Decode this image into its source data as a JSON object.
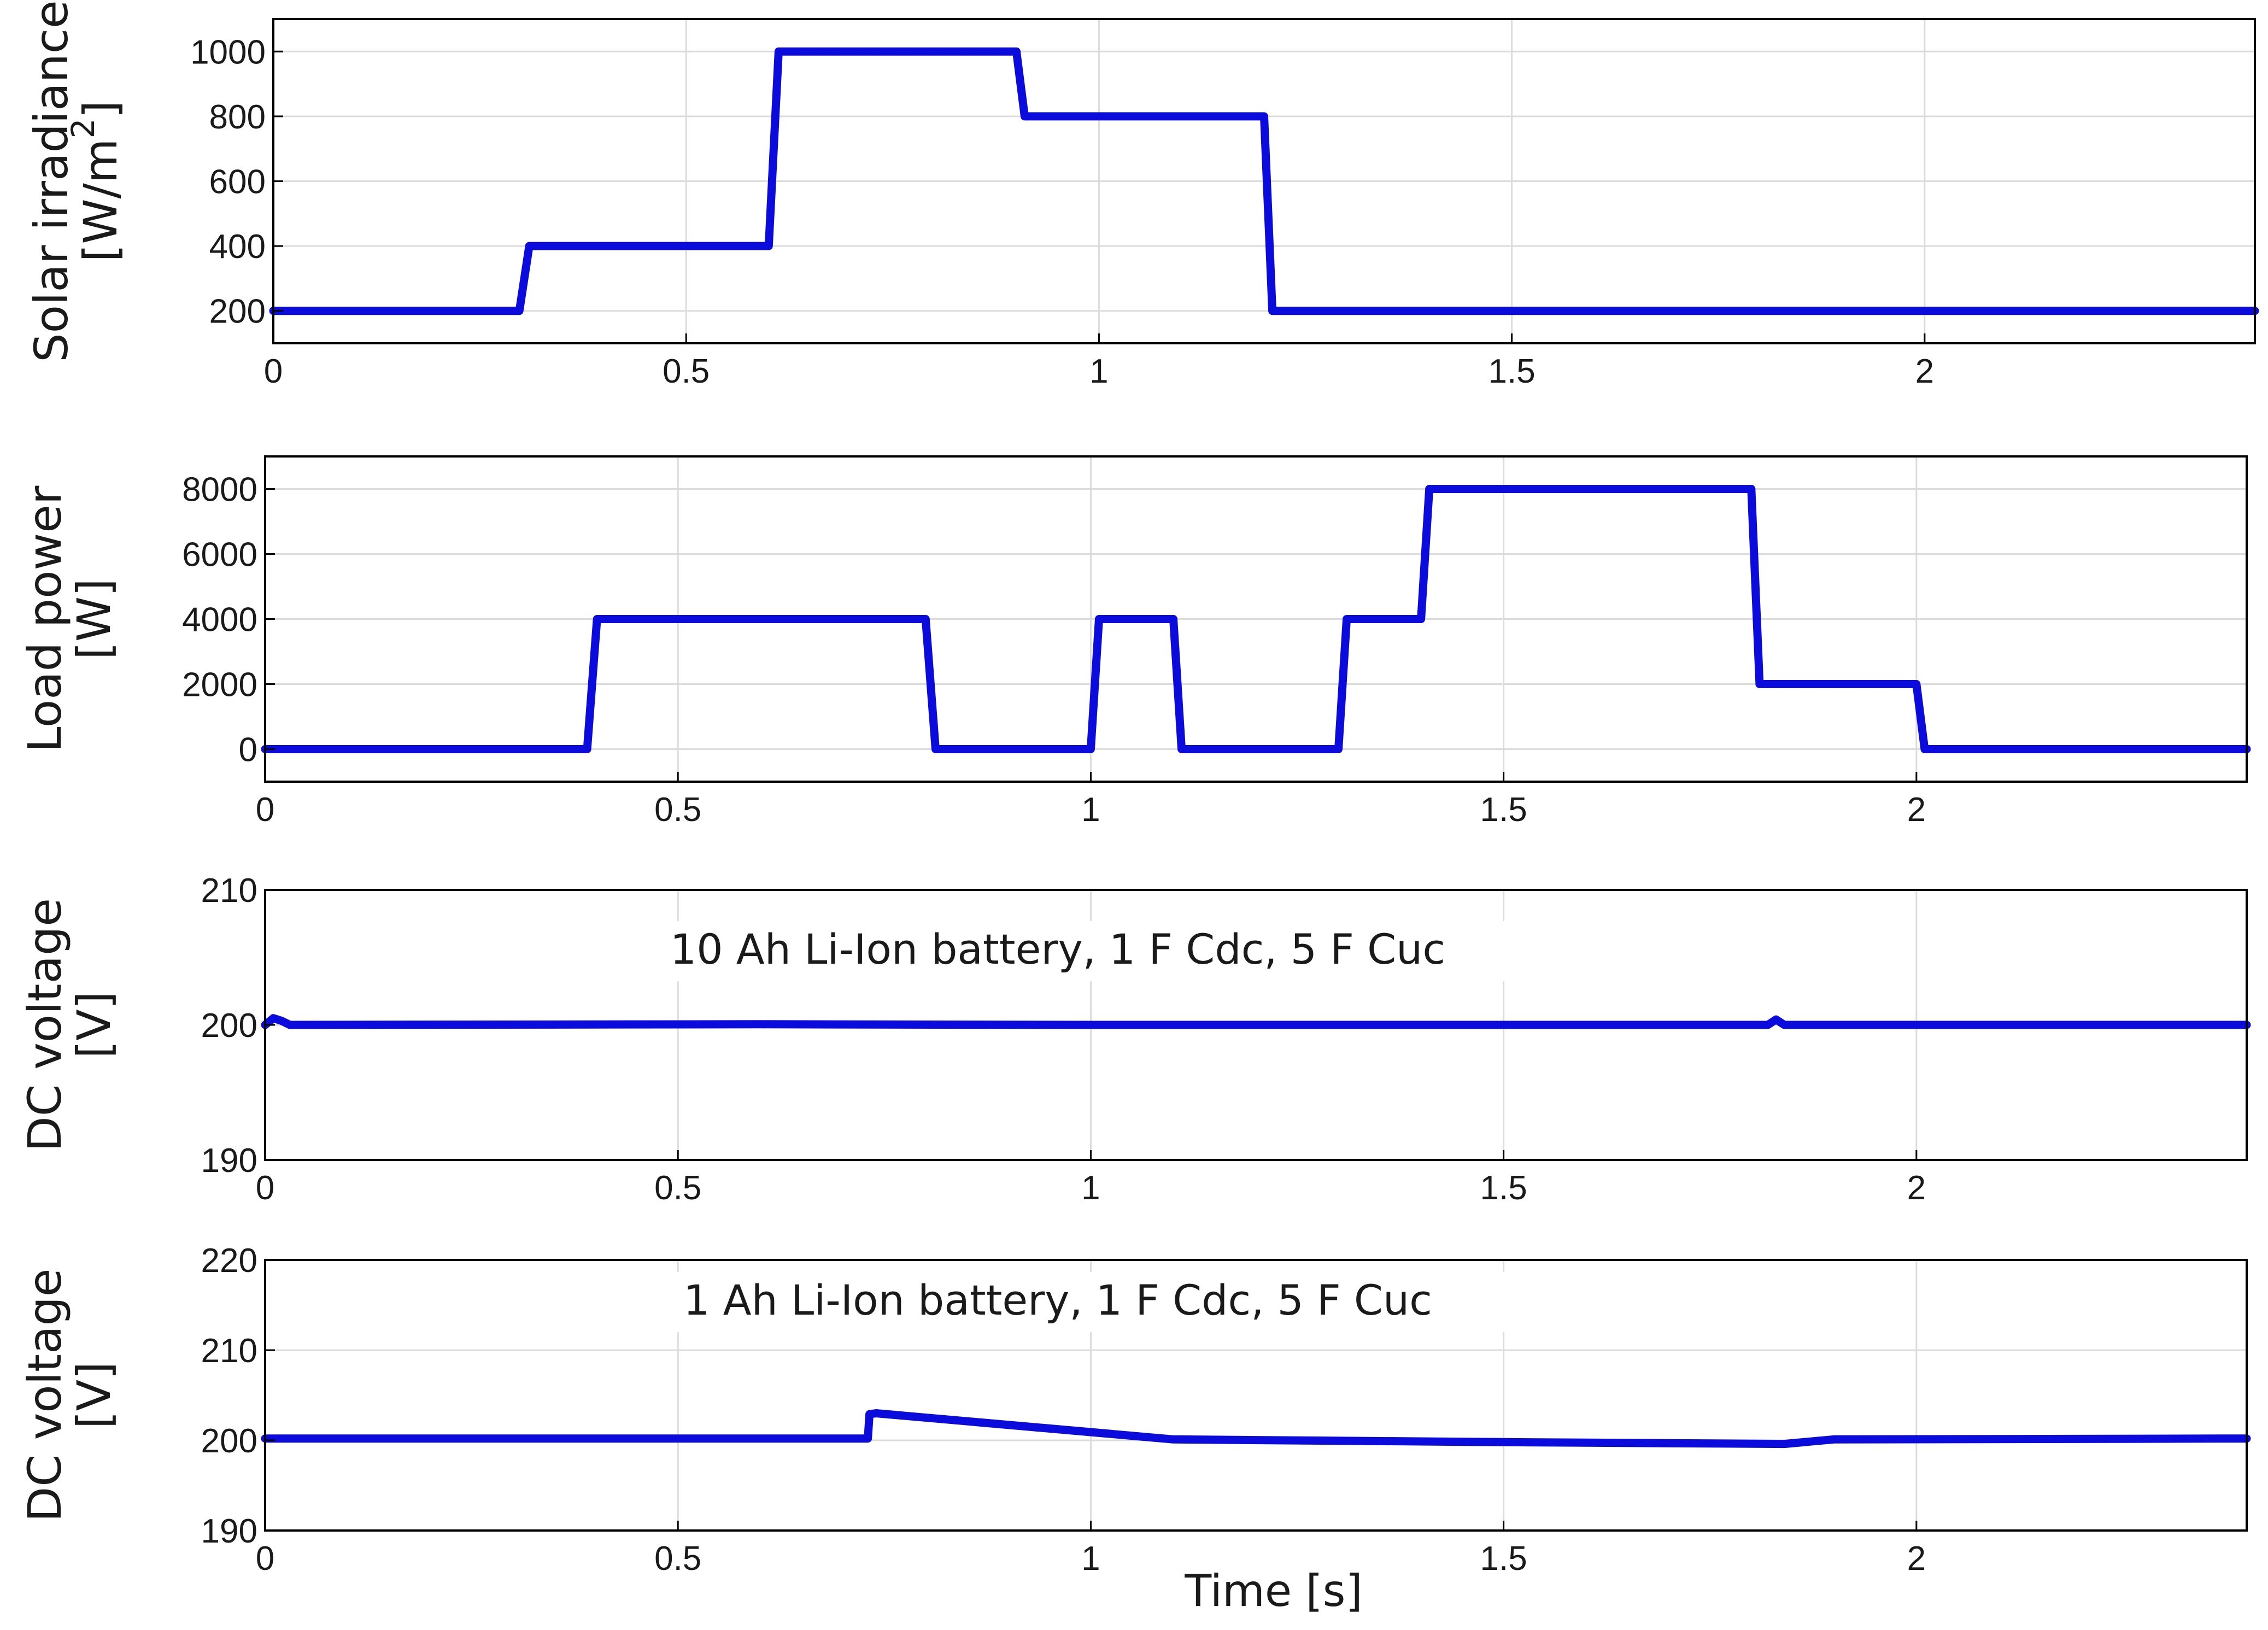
{
  "chart_data": [
    {
      "type": "line",
      "ylabel_lines": [
        "Solar irradiance",
        "[W/m2]"
      ],
      "xlim": [
        0,
        2.4
      ],
      "ylim": [
        100,
        1100
      ],
      "x_ticks": [
        0,
        0.5,
        1,
        1.5,
        2
      ],
      "x_tick_labels": [
        "0",
        "0.5",
        "1",
        "1.5",
        "2"
      ],
      "y_ticks": [
        200,
        400,
        600,
        800,
        1000
      ],
      "y_tick_labels": [
        "200",
        "400",
        "600",
        "800",
        "1000"
      ],
      "grid": true,
      "annotation": "",
      "color": "#0b0bdc",
      "x": [
        0,
        0.298,
        0.31,
        0.6,
        0.612,
        0.9,
        0.91,
        1.2,
        1.21,
        2.4
      ],
      "y": [
        200,
        200,
        400,
        400,
        1000,
        1000,
        800,
        800,
        200,
        200
      ]
    },
    {
      "type": "line",
      "ylabel_lines": [
        "Load power",
        "[W]"
      ],
      "xlim": [
        0,
        2.4
      ],
      "ylim": [
        -1000,
        9000
      ],
      "x_ticks": [
        0,
        0.5,
        1,
        1.5,
        2
      ],
      "x_tick_labels": [
        "0",
        "0.5",
        "1",
        "1.5",
        "2"
      ],
      "y_ticks": [
        0,
        2000,
        4000,
        6000,
        8000
      ],
      "y_tick_labels": [
        "0",
        "2000",
        "4000",
        "6000",
        "8000"
      ],
      "grid": true,
      "annotation": "",
      "color": "#0b0bdc",
      "x": [
        0,
        0.39,
        0.402,
        0.8,
        0.812,
        1.0,
        1.01,
        1.1,
        1.11,
        1.3,
        1.31,
        1.4,
        1.41,
        1.8,
        1.81,
        2.0,
        2.01,
        2.4
      ],
      "y": [
        0,
        0,
        4000,
        4000,
        0,
        0,
        4000,
        4000,
        0,
        0,
        4000,
        4000,
        8000,
        8000,
        2000,
        2000,
        0,
        0
      ]
    },
    {
      "type": "line",
      "ylabel_lines": [
        "DC voltage",
        "[V]"
      ],
      "xlim": [
        0,
        2.4
      ],
      "ylim": [
        190,
        210
      ],
      "x_ticks": [
        0,
        0.5,
        1,
        1.5,
        2
      ],
      "x_tick_labels": [
        "0",
        "0.5",
        "1",
        "1.5",
        "2"
      ],
      "y_ticks": [
        190,
        200,
        210
      ],
      "y_tick_labels": [
        "190",
        "200",
        "210"
      ],
      "grid": true,
      "annotation": "10 Ah Li-Ion battery, 1 F Cdc, 5 F Cuc",
      "color": "#0b0bdc",
      "x": [
        0,
        0.01,
        0.02,
        0.03,
        0.6,
        1.0,
        1.4,
        1.82,
        1.83,
        1.84,
        2.4
      ],
      "y": [
        200.0,
        200.5,
        200.3,
        200.0,
        200.05,
        200.0,
        200.0,
        200.0,
        200.4,
        200.0,
        200.0
      ]
    },
    {
      "type": "line",
      "ylabel_lines": [
        "DC voltage",
        "[V]"
      ],
      "xlim": [
        0,
        2.4
      ],
      "ylim": [
        190,
        220
      ],
      "x_ticks": [
        0,
        0.5,
        1,
        1.5,
        2
      ],
      "x_tick_labels": [
        "0",
        "0.5",
        "1",
        "1.5",
        "2"
      ],
      "y_ticks": [
        190,
        200,
        210,
        220
      ],
      "y_tick_labels": [
        "190",
        "200",
        "210",
        "220"
      ],
      "grid": true,
      "annotation": "1 Ah Li-Ion battery, 1 F Cdc, 5 F Cuc",
      "xlabel": "Time [s]",
      "color": "#0b0bdc",
      "x": [
        0,
        0.73,
        0.732,
        0.74,
        1.1,
        1.5,
        1.84,
        1.9,
        2.4
      ],
      "y": [
        200.2,
        200.2,
        202.9,
        203.0,
        200.1,
        199.8,
        199.6,
        200.1,
        200.2
      ]
    }
  ]
}
